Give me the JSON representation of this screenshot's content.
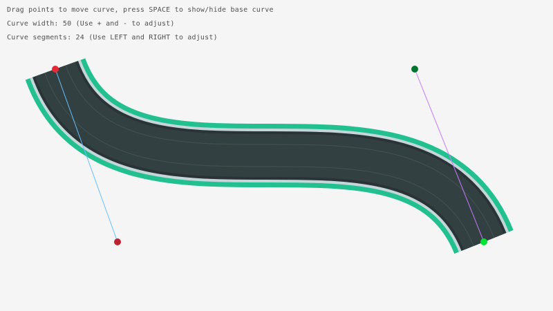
{
  "instructions": {
    "line1": "Drag points to move curve, press SPACE to show/hide base curve",
    "line2": "Curve width: 50 (Use + and - to adjust)",
    "line3": "Curve segments: 24 (Use LEFT and RIGHT to adjust)"
  },
  "curve": {
    "width": 50,
    "segments": 24,
    "start": [
      80,
      100
    ],
    "start_tangent": [
      170,
      350
    ],
    "end_tangent": [
      600,
      100
    ],
    "end": [
      700,
      350
    ]
  },
  "colors": {
    "background": "#f5f5f5",
    "road_border": "#23c08f",
    "road_edge": "#c4d6da",
    "road": "#334041",
    "start_point": "#e62937",
    "start_tangent_point": "#be2131",
    "end_tangent_point": "#00752c",
    "end_point": "#00e430",
    "start_handle_line": "#66bfff",
    "end_handle_line": "#c87aff"
  }
}
